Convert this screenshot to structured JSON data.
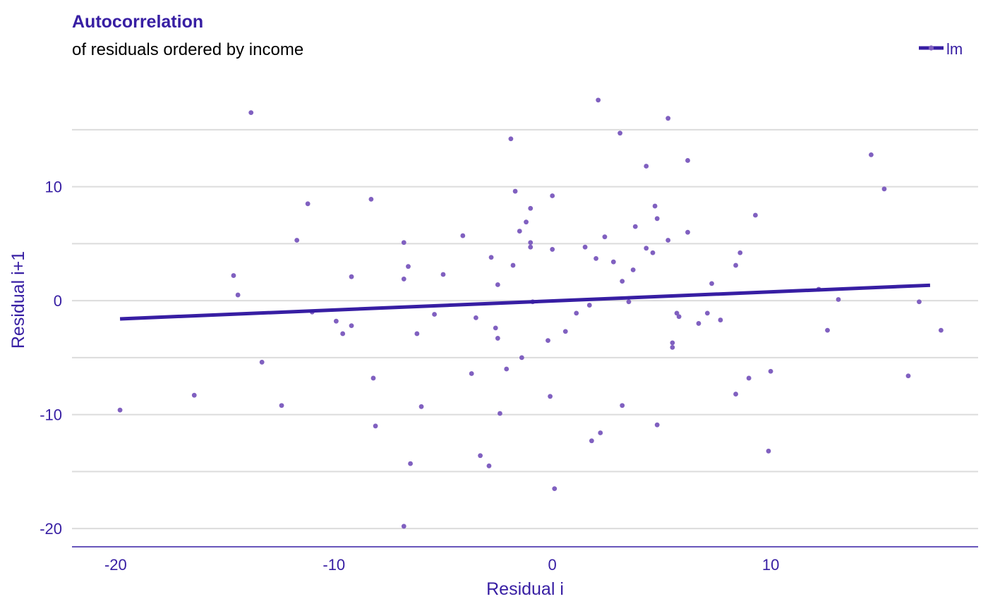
{
  "colors": {
    "accent": "#371ea3",
    "point": "#8060c0",
    "grid": "#dcdcdc"
  },
  "chart_data": {
    "type": "scatter",
    "title": "Autocorrelation",
    "subtitle": "of residuals ordered by income",
    "xlabel": "Residual i",
    "ylabel": "Residual i+1",
    "xlim": [
      -22,
      19.5
    ],
    "ylim": [
      -21.6,
      20.5
    ],
    "x_ticks": [
      -20,
      -10,
      0,
      10
    ],
    "x_tick_labels": [
      "-20",
      "-10",
      "0",
      "10"
    ],
    "y_ticks": [
      -20,
      -10,
      0,
      10
    ],
    "y_tick_labels": [
      "-20",
      "-10",
      "0",
      "10"
    ],
    "y_minor_gridlines": [
      -15,
      -5,
      5,
      15
    ],
    "grid": true,
    "legend": {
      "position": "top-right",
      "entries": [
        {
          "label": "lm",
          "marker": "line-with-point"
        }
      ]
    },
    "fit_line": {
      "name": "lm",
      "x": [
        -19.8,
        17.3
      ],
      "y": [
        -1.6,
        1.35
      ]
    },
    "points": [
      [
        -13.8,
        16.5
      ],
      [
        2.1,
        17.6
      ],
      [
        5.3,
        16.0
      ],
      [
        3.1,
        14.7
      ],
      [
        -1.9,
        14.2
      ],
      [
        14.6,
        12.8
      ],
      [
        6.2,
        12.3
      ],
      [
        4.3,
        11.8
      ],
      [
        15.2,
        9.8
      ],
      [
        -1.7,
        9.6
      ],
      [
        0.0,
        9.2
      ],
      [
        -8.3,
        8.9
      ],
      [
        -11.2,
        8.5
      ],
      [
        4.7,
        8.3
      ],
      [
        -1.0,
        8.1
      ],
      [
        9.3,
        7.5
      ],
      [
        4.8,
        7.2
      ],
      [
        -1.2,
        6.9
      ],
      [
        3.8,
        6.5
      ],
      [
        -1.5,
        6.1
      ],
      [
        6.2,
        6.0
      ],
      [
        -4.1,
        5.7
      ],
      [
        2.4,
        5.6
      ],
      [
        5.3,
        5.3
      ],
      [
        -11.7,
        5.3
      ],
      [
        -6.8,
        5.1
      ],
      [
        -1.0,
        5.1
      ],
      [
        -1.0,
        4.7
      ],
      [
        1.5,
        4.7
      ],
      [
        4.3,
        4.6
      ],
      [
        0.0,
        4.5
      ],
      [
        4.6,
        4.2
      ],
      [
        8.6,
        4.2
      ],
      [
        -2.8,
        3.8
      ],
      [
        2.0,
        3.7
      ],
      [
        2.8,
        3.4
      ],
      [
        -1.8,
        3.1
      ],
      [
        8.4,
        3.1
      ],
      [
        -6.6,
        3.0
      ],
      [
        3.7,
        2.7
      ],
      [
        -5.0,
        2.3
      ],
      [
        -14.6,
        2.2
      ],
      [
        -9.2,
        2.1
      ],
      [
        -6.8,
        1.9
      ],
      [
        3.2,
        1.7
      ],
      [
        7.3,
        1.5
      ],
      [
        -2.5,
        1.4
      ],
      [
        12.2,
        1.0
      ],
      [
        -14.4,
        0.5
      ],
      [
        13.1,
        0.1
      ],
      [
        -0.9,
        -0.1
      ],
      [
        3.5,
        -0.1
      ],
      [
        16.8,
        -0.1
      ],
      [
        1.7,
        -0.4
      ],
      [
        -11.0,
        -1.0
      ],
      [
        1.1,
        -1.1
      ],
      [
        5.7,
        -1.1
      ],
      [
        7.1,
        -1.1
      ],
      [
        -5.4,
        -1.2
      ],
      [
        5.8,
        -1.4
      ],
      [
        -3.5,
        -1.5
      ],
      [
        7.7,
        -1.7
      ],
      [
        -9.9,
        -1.8
      ],
      [
        6.7,
        -2.0
      ],
      [
        -9.2,
        -2.2
      ],
      [
        -2.6,
        -2.4
      ],
      [
        12.6,
        -2.6
      ],
      [
        17.8,
        -2.6
      ],
      [
        0.6,
        -2.7
      ],
      [
        -9.6,
        -2.9
      ],
      [
        -6.2,
        -2.9
      ],
      [
        -2.5,
        -3.3
      ],
      [
        -0.2,
        -3.5
      ],
      [
        5.5,
        -3.7
      ],
      [
        5.5,
        -4.1
      ],
      [
        -1.4,
        -5.0
      ],
      [
        -13.3,
        -5.4
      ],
      [
        -2.1,
        -6.0
      ],
      [
        10.0,
        -6.2
      ],
      [
        -3.7,
        -6.4
      ],
      [
        16.3,
        -6.6
      ],
      [
        9.0,
        -6.8
      ],
      [
        -8.2,
        -6.8
      ],
      [
        8.4,
        -8.2
      ],
      [
        -16.4,
        -8.3
      ],
      [
        -0.1,
        -8.4
      ],
      [
        -12.4,
        -9.2
      ],
      [
        3.2,
        -9.2
      ],
      [
        -6.0,
        -9.3
      ],
      [
        -19.8,
        -9.6
      ],
      [
        -2.4,
        -9.9
      ],
      [
        4.8,
        -10.9
      ],
      [
        -8.1,
        -11.0
      ],
      [
        2.2,
        -11.6
      ],
      [
        1.8,
        -12.3
      ],
      [
        9.9,
        -13.2
      ],
      [
        -3.3,
        -13.6
      ],
      [
        -6.5,
        -14.3
      ],
      [
        -2.9,
        -14.5
      ],
      [
        0.1,
        -16.5
      ],
      [
        -6.8,
        -19.8
      ]
    ]
  }
}
